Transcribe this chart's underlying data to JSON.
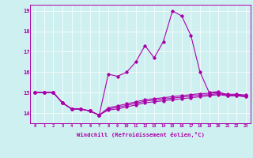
{
  "xlabel": "Windchill (Refroidissement éolien,°C)",
  "background_color": "#cff0f0",
  "line_color": "#aa00aa",
  "grid_color": "#ffffff",
  "xlim": [
    -0.5,
    23.5
  ],
  "ylim": [
    13.5,
    19.3
  ],
  "xticks": [
    0,
    1,
    2,
    3,
    4,
    5,
    6,
    7,
    8,
    9,
    10,
    11,
    12,
    13,
    14,
    15,
    16,
    17,
    18,
    19,
    20,
    21,
    22,
    23
  ],
  "yticks": [
    14,
    15,
    16,
    17,
    18,
    19
  ],
  "series1_y": [
    15.0,
    15.0,
    15.0,
    14.5,
    14.2,
    14.2,
    14.1,
    13.9,
    15.9,
    15.8,
    16.0,
    16.5,
    17.3,
    16.7,
    17.5,
    19.0,
    18.75,
    17.8,
    16.0,
    15.0,
    15.05,
    14.85,
    14.85,
    14.8
  ],
  "series2_y": [
    15.0,
    15.0,
    15.0,
    14.5,
    14.2,
    14.2,
    14.1,
    13.9,
    14.15,
    14.2,
    14.3,
    14.4,
    14.5,
    14.55,
    14.6,
    14.65,
    14.7,
    14.75,
    14.8,
    14.85,
    14.9,
    14.85,
    14.85,
    14.8
  ],
  "series3_y": [
    15.0,
    15.0,
    15.0,
    14.5,
    14.2,
    14.2,
    14.1,
    13.9,
    14.2,
    14.28,
    14.38,
    14.48,
    14.58,
    14.63,
    14.68,
    14.73,
    14.78,
    14.83,
    14.88,
    14.9,
    14.95,
    14.88,
    14.88,
    14.85
  ],
  "series4_y": [
    15.0,
    15.0,
    15.0,
    14.5,
    14.2,
    14.2,
    14.1,
    13.9,
    14.25,
    14.35,
    14.45,
    14.55,
    14.65,
    14.7,
    14.75,
    14.8,
    14.85,
    14.9,
    14.95,
    14.97,
    15.0,
    14.92,
    14.92,
    14.88
  ]
}
